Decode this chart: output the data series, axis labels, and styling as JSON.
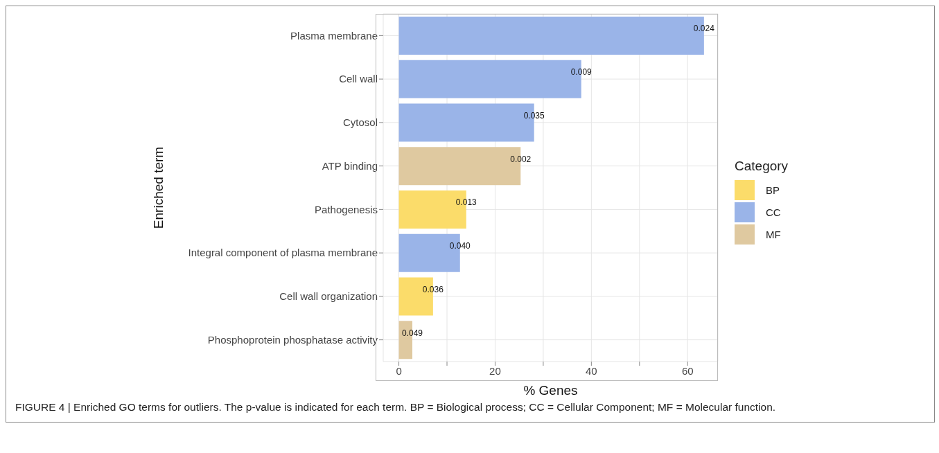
{
  "chart_data": {
    "type": "bar",
    "orientation": "horizontal",
    "stacked": true,
    "xlabel": "% Genes",
    "ylabel": "Enriched term",
    "legend_title": "Category",
    "categories": [
      "Plasma membrane",
      "Cell wall",
      "Cytosol",
      "ATP binding",
      "Pathogenesis",
      "Integral component of plasma membrane",
      "Cell wall organization",
      "Phosphoprotein phosphatase activity"
    ],
    "series": [
      {
        "name": "BP",
        "color": "#fbdc6a",
        "values": [
          null,
          null,
          null,
          null,
          14.0,
          null,
          7.1,
          null
        ]
      },
      {
        "name": "CC",
        "color": "#9ab4e8",
        "values": [
          63.4,
          37.9,
          28.1,
          null,
          null,
          12.7,
          null,
          null
        ]
      },
      {
        "name": "MF",
        "color": "#dfc9a0",
        "values": [
          null,
          null,
          null,
          25.3,
          null,
          null,
          null,
          2.8
        ]
      }
    ],
    "xlim": [
      -3.25,
      66.3
    ],
    "xticks": [
      0,
      {
        "value": 10,
        "label": null
      },
      20,
      {
        "value": 30,
        "label": null
      },
      40,
      {
        "value": 50,
        "label": null
      },
      60
    ],
    "grid": true,
    "legend": "right",
    "annotations": [
      {
        "text": "0.024",
        "x": 63.4,
        "y": "Plasma membrane"
      },
      {
        "text": "0.009",
        "x": 37.9,
        "y": "Cell wall"
      },
      {
        "text": "0.035",
        "x": 28.1,
        "y": "Cytosol"
      },
      {
        "text": "0.002",
        "x": 25.3,
        "y": "ATP binding"
      },
      {
        "text": "0.013",
        "x": 14.0,
        "y": "Pathogenesis"
      },
      {
        "text": "0.040",
        "x": 12.7,
        "y": "Integral component of plasma membrane"
      },
      {
        "text": "0.036",
        "x": 7.1,
        "y": "Cell wall organization"
      },
      {
        "text": "0.049",
        "x": 2.8,
        "y": "Phosphoprotein phosphatase activity"
      },
      "FIGURE 4 | Enriched GO terms for outliers. The p-value is indicated for each term. BP = Biological process; CC = Cellular Component; MF = Molecular function."
    ]
  }
}
